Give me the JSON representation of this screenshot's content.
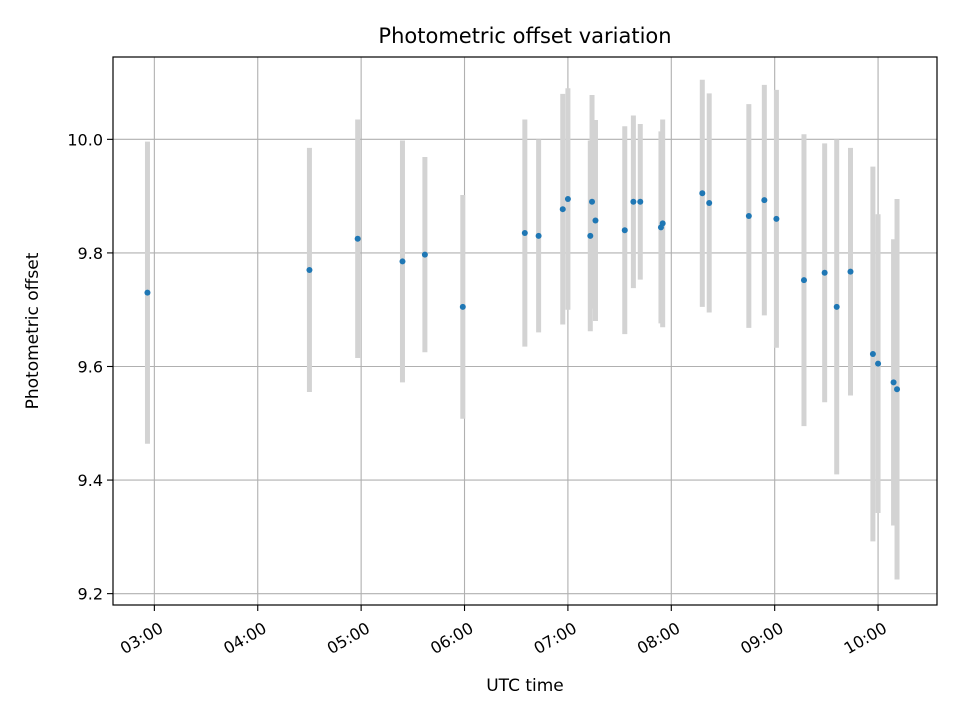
{
  "chart_data": {
    "type": "scatter",
    "title": "Photometric offset variation",
    "xlabel": "UTC time",
    "ylabel": "Photometric offset",
    "x_tick_labels": [
      "03:00",
      "04:00",
      "05:00",
      "06:00",
      "07:00",
      "08:00",
      "09:00",
      "10:00"
    ],
    "x_ticks_hours": [
      3,
      4,
      5,
      6,
      7,
      8,
      9,
      10
    ],
    "xlim_hours": [
      2.6,
      10.57
    ],
    "y_tick_labels": [
      "9.2",
      "9.4",
      "9.6",
      "9.8",
      "10.0"
    ],
    "y_ticks": [
      9.2,
      9.4,
      9.6,
      9.8,
      10.0
    ],
    "ylim": [
      9.18,
      10.145
    ],
    "grid": true,
    "colors": {
      "point": "#1f77b4",
      "errorbar": "#d3d3d3",
      "grid": "#b0b0b0"
    },
    "points": [
      {
        "t": "02:56",
        "y": 9.73,
        "err": 0.266
      },
      {
        "t": "04:30",
        "y": 9.77,
        "err": 0.215
      },
      {
        "t": "04:58",
        "y": 9.825,
        "err": 0.21
      },
      {
        "t": "05:24",
        "y": 9.785,
        "err": 0.213
      },
      {
        "t": "05:37",
        "y": 9.797,
        "err": 0.172
      },
      {
        "t": "05:59",
        "y": 9.705,
        "err": 0.197
      },
      {
        "t": "06:35",
        "y": 9.835,
        "err": 0.2
      },
      {
        "t": "06:43",
        "y": 9.83,
        "err": 0.17
      },
      {
        "t": "06:57",
        "y": 9.877,
        "err": 0.203
      },
      {
        "t": "07:00",
        "y": 9.895,
        "err": 0.195
      },
      {
        "t": "07:13",
        "y": 9.83,
        "err": 0.168
      },
      {
        "t": "07:14",
        "y": 9.89,
        "err": 0.188
      },
      {
        "t": "07:16",
        "y": 9.857,
        "err": 0.177
      },
      {
        "t": "07:33",
        "y": 9.84,
        "err": 0.183
      },
      {
        "t": "07:38",
        "y": 9.89,
        "err": 0.152
      },
      {
        "t": "07:42",
        "y": 9.89,
        "err": 0.137
      },
      {
        "t": "07:54",
        "y": 9.845,
        "err": 0.169
      },
      {
        "t": "07:55",
        "y": 9.852,
        "err": 0.183
      },
      {
        "t": "08:18",
        "y": 9.905,
        "err": 0.2
      },
      {
        "t": "08:22",
        "y": 9.888,
        "err": 0.193
      },
      {
        "t": "08:45",
        "y": 9.865,
        "err": 0.197
      },
      {
        "t": "08:54",
        "y": 9.893,
        "err": 0.203
      },
      {
        "t": "09:01",
        "y": 9.86,
        "err": 0.227
      },
      {
        "t": "09:17",
        "y": 9.752,
        "err": 0.257
      },
      {
        "t": "09:29",
        "y": 9.765,
        "err": 0.228
      },
      {
        "t": "09:36",
        "y": 9.705,
        "err": 0.295
      },
      {
        "t": "09:44",
        "y": 9.767,
        "err": 0.218
      },
      {
        "t": "09:57",
        "y": 9.622,
        "err": 0.33
      },
      {
        "t": "10:00",
        "y": 9.605,
        "err": 0.263
      },
      {
        "t": "10:09",
        "y": 9.572,
        "err": 0.252
      },
      {
        "t": "10:11",
        "y": 9.56,
        "err": 0.335
      }
    ]
  }
}
